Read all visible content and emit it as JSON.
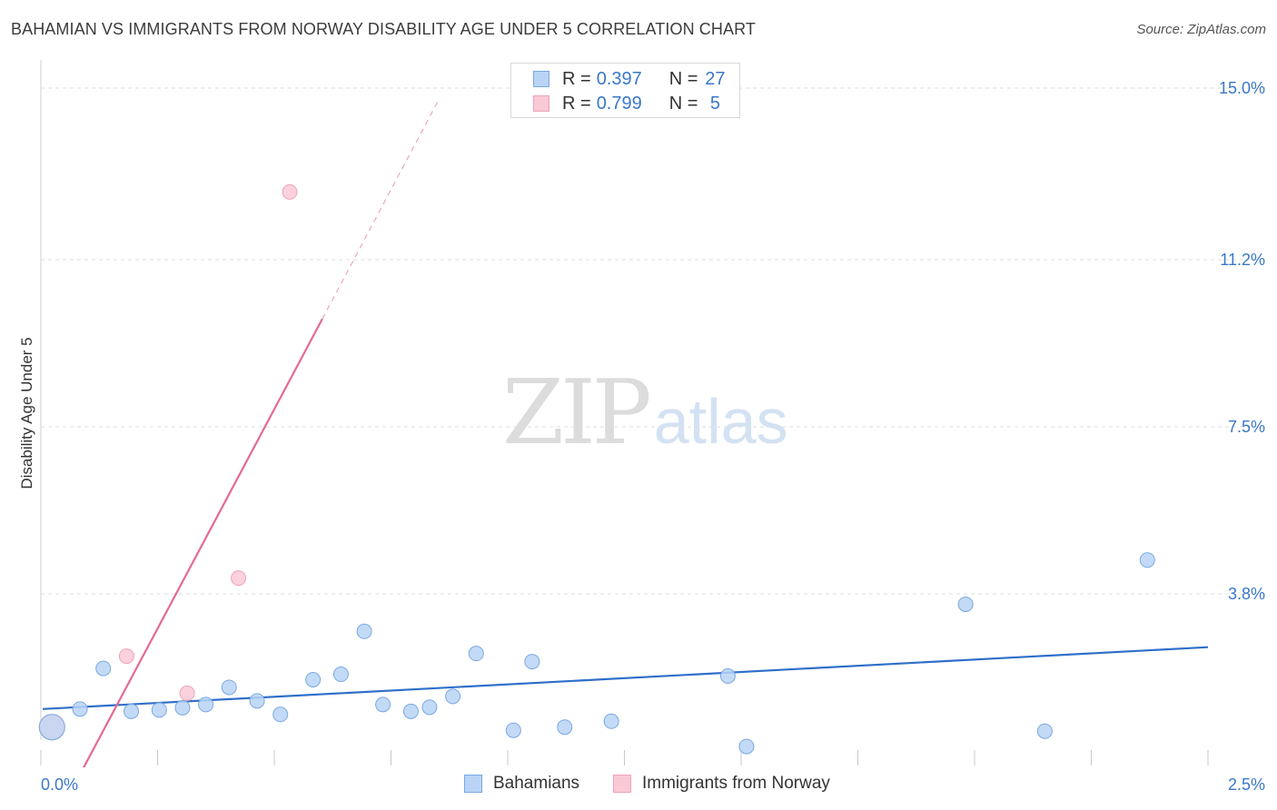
{
  "header": {
    "title": "BAHAMIAN VS IMMIGRANTS FROM NORWAY DISABILITY AGE UNDER 5 CORRELATION CHART",
    "source": "Source: ZipAtlas.com"
  },
  "watermark": {
    "zip": "ZIP",
    "atlas": "atlas"
  },
  "colors": {
    "blue_fill": "#b9d4f6",
    "blue_stroke": "#7aa8e0",
    "blue_line": "#2f6fca",
    "pink_fill": "#f9c9d6",
    "pink_stroke": "#eea3b8",
    "pink_line": "#e46a91",
    "tick_label": "#3a78c9",
    "grid": "#dddddd"
  },
  "legend_top": [
    {
      "r_label": "R =",
      "r_value": "0.397",
      "n_label": "N =",
      "n_value": "27",
      "series": "blue"
    },
    {
      "r_label": "R =",
      "r_value": "0.799",
      "n_label": "N =",
      "n_value": "5",
      "series": "pink"
    }
  ],
  "chart_data": {
    "type": "scatter",
    "title": "BAHAMIAN VS IMMIGRANTS FROM NORWAY DISABILITY AGE UNDER 5 CORRELATION CHART",
    "xlabel": "",
    "ylabel": "Disability Age Under 5",
    "xlim": [
      0.0,
      2.5
    ],
    "ylim": [
      0.0,
      15.0
    ],
    "x_tick_labels": [
      "0.0%",
      "2.5%"
    ],
    "y_ticks": [
      3.8,
      7.5,
      11.2,
      15.0
    ],
    "y_tick_labels": [
      "3.8%",
      "7.5%",
      "11.2%",
      "15.0%"
    ],
    "grid": true,
    "legend_position": "bottom-center",
    "series": [
      {
        "name": "Bahamians",
        "color": "blue",
        "points": [
          {
            "x": 0.02,
            "y": 0.85,
            "big": true
          },
          {
            "x": 0.08,
            "y": 1.25
          },
          {
            "x": 0.13,
            "y": 2.15
          },
          {
            "x": 0.19,
            "y": 1.2
          },
          {
            "x": 0.25,
            "y": 1.23
          },
          {
            "x": 0.3,
            "y": 1.28
          },
          {
            "x": 0.35,
            "y": 1.35
          },
          {
            "x": 0.4,
            "y": 1.73
          },
          {
            "x": 0.46,
            "y": 1.43
          },
          {
            "x": 0.51,
            "y": 1.13
          },
          {
            "x": 0.58,
            "y": 1.9
          },
          {
            "x": 0.64,
            "y": 2.02
          },
          {
            "x": 0.69,
            "y": 2.97
          },
          {
            "x": 0.73,
            "y": 1.35
          },
          {
            "x": 0.79,
            "y": 1.2
          },
          {
            "x": 0.83,
            "y": 1.29
          },
          {
            "x": 0.88,
            "y": 1.53
          },
          {
            "x": 0.93,
            "y": 2.48
          },
          {
            "x": 1.01,
            "y": 0.78
          },
          {
            "x": 1.05,
            "y": 2.3
          },
          {
            "x": 1.12,
            "y": 0.85
          },
          {
            "x": 1.22,
            "y": 0.98
          },
          {
            "x": 1.47,
            "y": 1.98
          },
          {
            "x": 1.51,
            "y": 0.42
          },
          {
            "x": 1.98,
            "y": 3.57
          },
          {
            "x": 2.15,
            "y": 0.76
          },
          {
            "x": 2.37,
            "y": 4.55
          }
        ],
        "trend": {
          "x1": 0.0,
          "y1": 1.25,
          "x2": 2.5,
          "y2": 2.62,
          "style": "solid"
        }
      },
      {
        "name": "Immigrants from Norway",
        "color": "pink",
        "points": [
          {
            "x": 0.02,
            "y": 0.85,
            "big": true
          },
          {
            "x": 0.18,
            "y": 2.42
          },
          {
            "x": 0.31,
            "y": 1.6
          },
          {
            "x": 0.42,
            "y": 4.15
          },
          {
            "x": 0.53,
            "y": 12.7
          }
        ],
        "trend": {
          "x1": 0.0,
          "y1": -1.75,
          "x2": 0.6,
          "y2": 9.89,
          "style": "solid"
        },
        "trend_extension": {
          "x1": 0.6,
          "y1": 9.89,
          "x2": 0.85,
          "y2": 14.75,
          "style": "dashed"
        }
      }
    ]
  }
}
